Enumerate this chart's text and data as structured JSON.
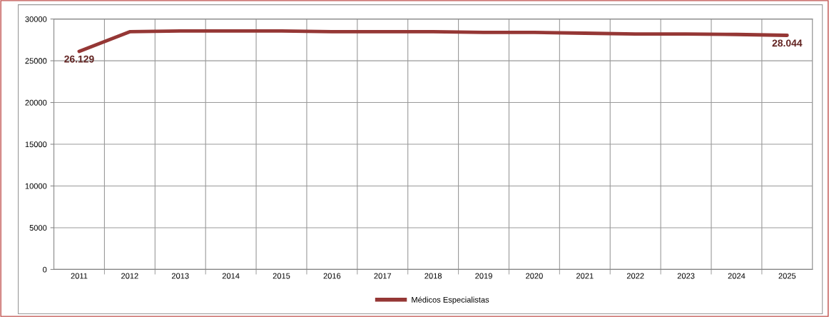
{
  "chart_data": {
    "type": "line",
    "categories": [
      "2011",
      "2012",
      "2013",
      "2014",
      "2015",
      "2016",
      "2017",
      "2018",
      "2019",
      "2020",
      "2021",
      "2022",
      "2023",
      "2024",
      "2025"
    ],
    "series": [
      {
        "name": "Médicos Especialistas",
        "color": "#953735",
        "values": [
          26129,
          28480,
          28570,
          28570,
          28570,
          28480,
          28480,
          28480,
          28400,
          28400,
          28300,
          28200,
          28200,
          28150,
          28044
        ],
        "value_labels": [
          "26.129",
          null,
          null,
          null,
          null,
          null,
          null,
          null,
          null,
          null,
          null,
          null,
          null,
          null,
          "28.044"
        ]
      }
    ],
    "ylim": [
      0,
      30000
    ],
    "yticks": [
      0,
      5000,
      10000,
      15000,
      20000,
      25000,
      30000
    ],
    "grid": true,
    "legend": "bottom",
    "marker": "none",
    "line_style": "solid"
  }
}
